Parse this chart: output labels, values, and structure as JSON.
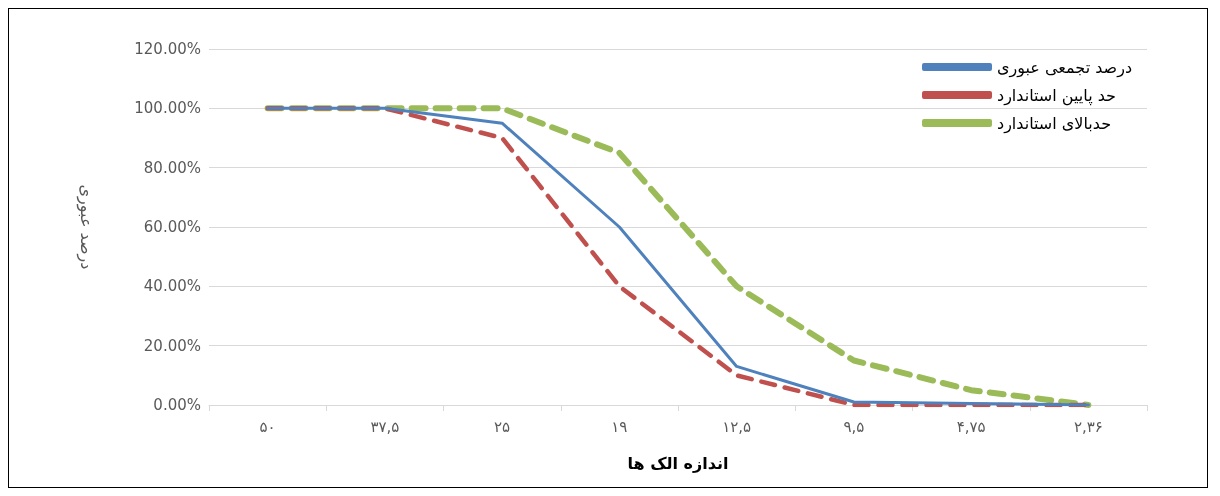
{
  "chart_data": {
    "type": "line",
    "xlabel": "اندازه الک ها",
    "ylabel": "درصد عبوری",
    "categories": [
      "۵۰",
      "۳۷,۵",
      "۲۵",
      "۱۹",
      "۱۲,۵",
      "۹,۵",
      "۴,۷۵",
      "۲,۳۶"
    ],
    "series": [
      {
        "name": "درصد تجمعی عبوری",
        "color": "#4f81bd",
        "values": [
          100,
          100,
          95,
          60,
          13,
          1,
          0.5,
          0
        ],
        "line_style": "solid"
      },
      {
        "name": "حد پایین استاندارد",
        "color": "#c0504d",
        "values": [
          100,
          100,
          90,
          40,
          10,
          0,
          0,
          0
        ],
        "line_style": "dashed"
      },
      {
        "name": "حدبالای استاندارد",
        "color": "#9bbb59",
        "values": [
          100,
          100,
          100,
          85,
          40,
          15,
          5,
          0
        ],
        "line_style": "dashed"
      }
    ],
    "ylim": [
      0,
      120
    ],
    "yticks": [
      {
        "value": 0,
        "label": "0.00%"
      },
      {
        "value": 20,
        "label": "20.00%"
      },
      {
        "value": 40,
        "label": "40.00%"
      },
      {
        "value": 60,
        "label": "60.00%"
      },
      {
        "value": 80,
        "label": "80.00%"
      },
      {
        "value": 100,
        "label": "100.00%"
      },
      {
        "value": 120,
        "label": "120.00%"
      }
    ],
    "grid": "y",
    "legend": "top right",
    "marker": "none"
  }
}
